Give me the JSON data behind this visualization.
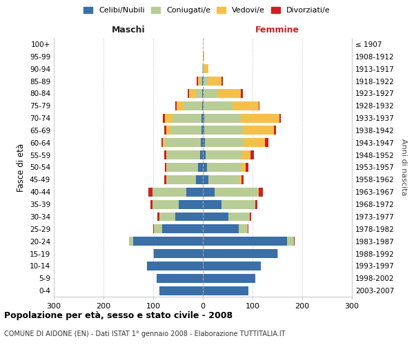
{
  "age_groups": [
    "0-4",
    "5-9",
    "10-14",
    "15-19",
    "20-24",
    "25-29",
    "30-34",
    "35-39",
    "40-44",
    "45-49",
    "50-54",
    "55-59",
    "60-64",
    "65-69",
    "70-74",
    "75-79",
    "80-84",
    "85-89",
    "90-94",
    "95-99",
    "100+"
  ],
  "birth_years": [
    "2003-2007",
    "1998-2002",
    "1993-1997",
    "1988-1992",
    "1983-1987",
    "1978-1982",
    "1973-1977",
    "1968-1972",
    "1963-1967",
    "1958-1962",
    "1953-1957",
    "1948-1952",
    "1943-1947",
    "1938-1942",
    "1933-1937",
    "1928-1932",
    "1923-1927",
    "1918-1922",
    "1913-1917",
    "1908-1912",
    "≤ 1907"
  ],
  "male_celibi": [
    88,
    93,
    112,
    98,
    140,
    82,
    55,
    48,
    33,
    14,
    10,
    6,
    4,
    3,
    3,
    2,
    1,
    1,
    0,
    0,
    0
  ],
  "male_coniugati": [
    0,
    0,
    0,
    2,
    8,
    16,
    33,
    53,
    68,
    58,
    62,
    66,
    72,
    62,
    58,
    37,
    13,
    4,
    1,
    0,
    0
  ],
  "male_vedovi": [
    0,
    0,
    0,
    0,
    0,
    0,
    0,
    0,
    1,
    1,
    1,
    2,
    4,
    9,
    16,
    14,
    14,
    5,
    1,
    0,
    0
  ],
  "male_divorziati": [
    0,
    0,
    0,
    0,
    1,
    2,
    4,
    4,
    8,
    5,
    4,
    4,
    3,
    4,
    4,
    2,
    2,
    2,
    0,
    0,
    0
  ],
  "female_nubili": [
    92,
    106,
    116,
    150,
    170,
    72,
    52,
    38,
    23,
    11,
    9,
    6,
    4,
    3,
    3,
    2,
    1,
    1,
    0,
    0,
    0
  ],
  "female_coniugate": [
    0,
    0,
    0,
    2,
    14,
    18,
    43,
    68,
    88,
    63,
    68,
    72,
    78,
    78,
    73,
    58,
    28,
    9,
    3,
    1,
    0
  ],
  "female_vedove": [
    0,
    0,
    0,
    0,
    0,
    0,
    0,
    0,
    2,
    4,
    9,
    18,
    43,
    62,
    78,
    52,
    48,
    28,
    8,
    2,
    0
  ],
  "female_divorziate": [
    0,
    0,
    0,
    0,
    1,
    1,
    2,
    4,
    8,
    4,
    5,
    7,
    7,
    4,
    3,
    2,
    3,
    2,
    0,
    0,
    0
  ],
  "color_celibi": "#3a6fa8",
  "color_coniugati": "#b8cc96",
  "color_vedovi": "#f5c04a",
  "color_divorziati": "#cc2222",
  "xlim": 300,
  "title": "Popolazione per età, sesso e stato civile - 2008",
  "subtitle": "COMUNE DI AIDONE (EN) - Dati ISTAT 1° gennaio 2008 - Elaborazione TUTTITALIA.IT",
  "ylabel_left": "Fasce di età",
  "ylabel_right": "Anni di nascita",
  "label_maschi": "Maschi",
  "label_femmine": "Femmine",
  "legend_labels": [
    "Celibi/Nubili",
    "Coniugati/e",
    "Vedovi/e",
    "Divorziati/e"
  ],
  "bg_color": "#ffffff",
  "grid_color": "#cccccc"
}
